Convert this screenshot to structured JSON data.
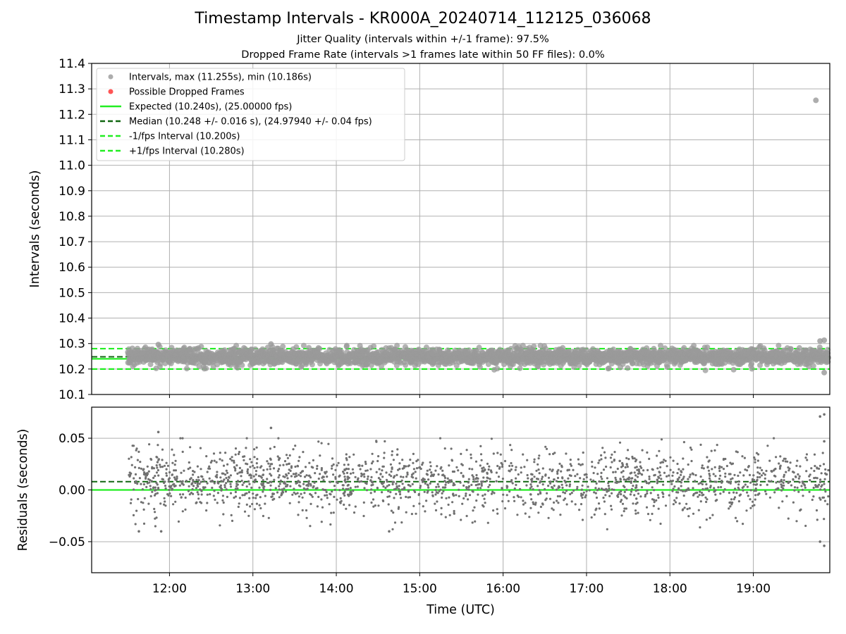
{
  "title": "Timestamp Intervals - KR000A_20240714_112125_036068",
  "subtitle_1": "Jitter Quality (intervals within +/-1 frame): 97.5%",
  "subtitle_2": "Dropped Frame Rate (intervals >1 frames late within 50 FF files): 0.0%",
  "colors": {
    "intervals": "#999999",
    "dropped": "#ff5555",
    "expected": "#22ee22",
    "median": "#116611",
    "fps_bounds": "#22ee22",
    "residuals": "#707070",
    "grid": "#b0b0b0"
  },
  "chart_data": [
    {
      "type": "scatter",
      "ylabel": "Intervals (seconds)",
      "ylim": [
        10.1,
        11.4
      ],
      "xlim": [
        "11:04",
        "19:55"
      ],
      "y_ticks": [
        "10.1",
        "10.2",
        "10.3",
        "10.4",
        "10.5",
        "10.6",
        "10.7",
        "10.8",
        "10.9",
        "11.0",
        "11.1",
        "11.2",
        "11.3",
        "11.4"
      ],
      "grid": true,
      "legend_placement": "upper-left",
      "legend": [
        "Intervals, max (11.255s), min (10.186s)",
        "Possible Dropped Frames",
        "Expected (10.240s), (25.00000 fps)",
        "Median (10.248 +/- 0.016 s), (24.97940 +/- 0.04 fps)",
        "-1/fps Interval (10.200s)",
        "+1/fps Interval (10.280s)"
      ],
      "reference_lines": {
        "expected": 10.24,
        "median": 10.248,
        "minus_one_fps": 10.2,
        "plus_one_fps": 10.28
      },
      "series": [
        {
          "name": "Intervals, max (11.255s), min (10.186s)",
          "x_start": "11:30",
          "x_end": "19:54",
          "y_center": 10.248,
          "y_spread": 0.016,
          "y_max": 11.255,
          "y_min": 10.186,
          "notable_points": [
            {
              "x": "19:45",
              "y": 11.255
            },
            {
              "x": "13:13",
              "y": 10.298
            },
            {
              "x": "11:52",
              "y": 10.296
            },
            {
              "x": "19:48",
              "y": 10.31
            },
            {
              "x": "19:51",
              "y": 10.313
            },
            {
              "x": "19:51",
              "y": 10.186
            }
          ]
        },
        {
          "name": "Possible Dropped Frames",
          "points": []
        }
      ]
    },
    {
      "type": "scatter",
      "ylabel": "Residuals (seconds)",
      "xlabel": "Time (UTC)",
      "ylim": [
        -0.08,
        0.08
      ],
      "xlim": [
        "11:04",
        "19:55"
      ],
      "y_ticks": [
        "−0.05",
        "0.00",
        "0.05"
      ],
      "x_ticks": [
        "12:00",
        "13:00",
        "14:00",
        "15:00",
        "16:00",
        "17:00",
        "18:00",
        "19:00"
      ],
      "grid": true,
      "reference_lines": {
        "expected_residual": 0.0,
        "median_residual": 0.008
      },
      "series": [
        {
          "name": "Residuals",
          "x_start": "11:30",
          "x_end": "19:54",
          "y_center": 0.008,
          "y_spread": 0.016,
          "notable_points": [
            {
              "x": "19:51",
              "y": 0.073
            },
            {
              "x": "19:48",
              "y": 0.071
            },
            {
              "x": "19:51",
              "y": 0.047
            },
            {
              "x": "13:13",
              "y": 0.06
            },
            {
              "x": "11:52",
              "y": 0.056
            },
            {
              "x": "19:48",
              "y": -0.05
            },
            {
              "x": "19:51",
              "y": -0.054
            },
            {
              "x": "14:38",
              "y": -0.04
            },
            {
              "x": "11:38",
              "y": -0.04
            },
            {
              "x": "11:54",
              "y": -0.04
            }
          ]
        }
      ]
    }
  ]
}
